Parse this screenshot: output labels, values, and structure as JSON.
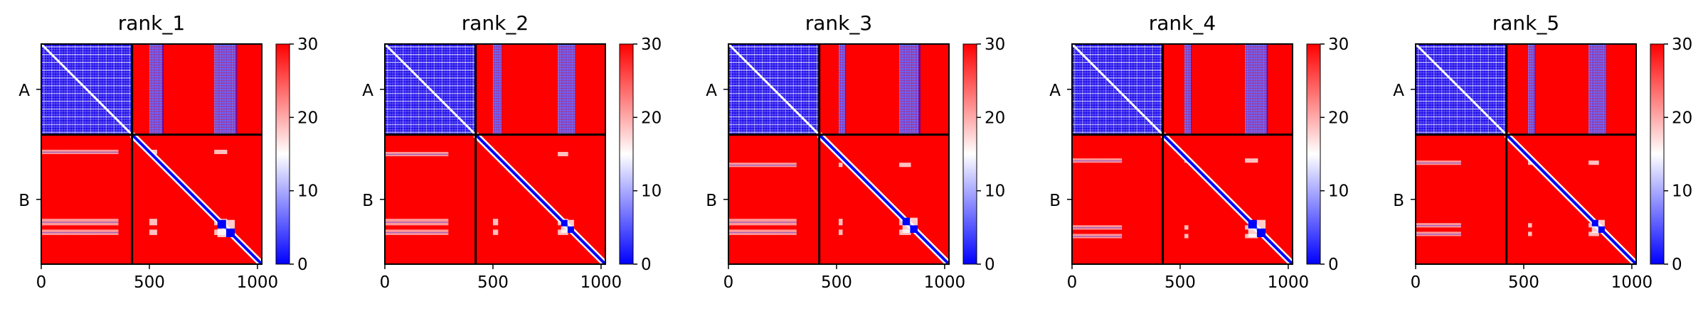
{
  "figure": {
    "panel_count": 5
  },
  "colors": {
    "low": "#0000ff",
    "mid": "#ffffff",
    "high": "#ff0000",
    "divider": "#000000"
  },
  "chart_data": [
    {
      "type": "heatmap",
      "title": "rank_1",
      "colormap": "bwr",
      "chains": [
        {
          "name": "A",
          "start": 0,
          "end": 420
        },
        {
          "name": "B",
          "start": 420,
          "end": 1020
        }
      ],
      "xticks": [
        0,
        500,
        1000
      ],
      "xlim": [
        0,
        1020
      ],
      "colorbar": {
        "vmin": 0,
        "vmax": 30,
        "ticks": [
          0,
          10,
          20,
          30
        ]
      },
      "strips": [
        [
          500,
          560
        ],
        [
          800,
          900
        ]
      ],
      "b_rows": [
        [
          70,
          90
        ],
        [
          390,
          420
        ],
        [
          440,
          465
        ]
      ],
      "b_ratio": 0.85
    },
    {
      "type": "heatmap",
      "title": "rank_2",
      "colormap": "bwr",
      "chains": [
        {
          "name": "A",
          "start": 0,
          "end": 420
        },
        {
          "name": "B",
          "start": 420,
          "end": 1020
        }
      ],
      "xticks": [
        0,
        500,
        1000
      ],
      "xlim": [
        0,
        1020
      ],
      "colorbar": {
        "vmin": 0,
        "vmax": 30,
        "ticks": [
          0,
          10,
          20,
          30
        ]
      },
      "strips": [
        [
          500,
          540
        ],
        [
          800,
          880
        ]
      ],
      "b_rows": [
        [
          80,
          100
        ],
        [
          390,
          420
        ],
        [
          440,
          465
        ]
      ],
      "b_ratio": 0.7
    },
    {
      "type": "heatmap",
      "title": "rank_3",
      "colormap": "bwr",
      "chains": [
        {
          "name": "A",
          "start": 0,
          "end": 420
        },
        {
          "name": "B",
          "start": 420,
          "end": 1020
        }
      ],
      "xticks": [
        0,
        500,
        1000
      ],
      "xlim": [
        0,
        1020
      ],
      "colorbar": {
        "vmin": 0,
        "vmax": 30,
        "ticks": [
          0,
          10,
          20,
          30
        ]
      },
      "strips": [
        [
          510,
          540
        ],
        [
          790,
          880
        ]
      ],
      "b_rows": [
        [
          130,
          150
        ],
        [
          390,
          420
        ],
        [
          440,
          465
        ]
      ],
      "b_ratio": 0.75
    },
    {
      "type": "heatmap",
      "title": "rank_4",
      "colormap": "bwr",
      "chains": [
        {
          "name": "A",
          "start": 0,
          "end": 420
        },
        {
          "name": "B",
          "start": 420,
          "end": 1020
        }
      ],
      "xticks": [
        0,
        500,
        1000
      ],
      "xlim": [
        0,
        1020
      ],
      "colorbar": {
        "vmin": 0,
        "vmax": 30,
        "ticks": [
          0,
          10,
          20,
          30
        ]
      },
      "strips": [
        [
          520,
          550
        ],
        [
          800,
          900
        ]
      ],
      "b_rows": [
        [
          110,
          130
        ],
        [
          420,
          440
        ],
        [
          460,
          480
        ]
      ],
      "b_ratio": 0.55
    },
    {
      "type": "heatmap",
      "title": "rank_5",
      "colormap": "bwr",
      "chains": [
        {
          "name": "A",
          "start": 0,
          "end": 420
        },
        {
          "name": "B",
          "start": 420,
          "end": 1020
        }
      ],
      "xticks": [
        0,
        500,
        1000
      ],
      "xlim": [
        0,
        1020
      ],
      "colorbar": {
        "vmin": 0,
        "vmax": 30,
        "ticks": [
          0,
          10,
          20,
          30
        ]
      },
      "strips": [
        [
          520,
          550
        ],
        [
          800,
          880
        ]
      ],
      "b_rows": [
        [
          120,
          140
        ],
        [
          410,
          430
        ],
        [
          450,
          470
        ]
      ],
      "b_ratio": 0.5
    }
  ]
}
